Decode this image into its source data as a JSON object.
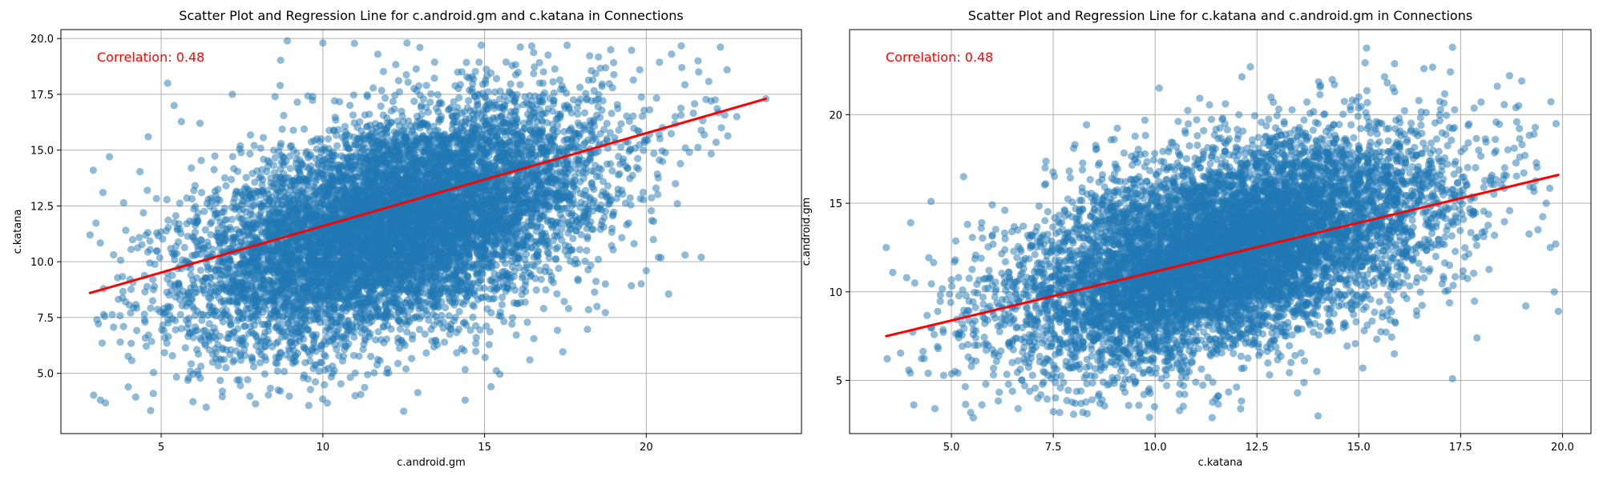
{
  "chart_data": [
    {
      "type": "scatter",
      "title": "Scatter Plot and Regression Line for c.android.gm and c.katana in Connections",
      "xlabel": "c.android.gm",
      "ylabel": "c.katana",
      "xlim": [
        1.9,
        24.8
      ],
      "ylim": [
        2.3,
        20.4
      ],
      "xticks": [
        5,
        10,
        15,
        20
      ],
      "yticks": [
        5.0,
        7.5,
        10.0,
        12.5,
        15.0,
        17.5,
        20.0
      ],
      "xtick_labels": [
        "5",
        "10",
        "15",
        "20"
      ],
      "ytick_labels": [
        "5.0",
        "7.5",
        "10.0",
        "12.5",
        "15.0",
        "17.5",
        "20.0"
      ],
      "grid": true,
      "annotation": "Correlation: 0.48",
      "point_color": "#1f77b4",
      "line_color": "#ff0000",
      "annotation_color": "#ff0000",
      "regression": {
        "x": [
          2.8,
          23.7
        ],
        "y": [
          8.6,
          17.3
        ]
      },
      "cloud": {
        "x_mean": 12.3,
        "y_mean": 11.7,
        "x_std": 3.1,
        "y_std": 2.6,
        "correlation": 0.48,
        "x_range": [
          2.8,
          23.7
        ],
        "y_range": [
          3.3,
          19.9
        ],
        "n": 9000
      },
      "points": [
        {
          "x": 2.8,
          "y": 11.2
        },
        {
          "x": 2.9,
          "y": 14.1
        },
        {
          "x": 3.4,
          "y": 14.7
        },
        {
          "x": 3.2,
          "y": 13.1
        },
        {
          "x": 3.9,
          "y": 8.2
        },
        {
          "x": 4.5,
          "y": 7.3
        },
        {
          "x": 4.6,
          "y": 15.6
        },
        {
          "x": 5.2,
          "y": 18.0
        },
        {
          "x": 5.4,
          "y": 17.0
        },
        {
          "x": 6.0,
          "y": 6.6
        },
        {
          "x": 6.2,
          "y": 16.2
        },
        {
          "x": 7.2,
          "y": 17.5
        },
        {
          "x": 7.6,
          "y": 5.8
        },
        {
          "x": 8.6,
          "y": 5.1
        },
        {
          "x": 8.9,
          "y": 19.9
        },
        {
          "x": 10.0,
          "y": 19.8
        },
        {
          "x": 10.3,
          "y": 5.0
        },
        {
          "x": 11.0,
          "y": 4.0
        },
        {
          "x": 11.7,
          "y": 19.3
        },
        {
          "x": 12.5,
          "y": 3.3
        },
        {
          "x": 12.6,
          "y": 19.8
        },
        {
          "x": 13.0,
          "y": 19.6
        },
        {
          "x": 14.4,
          "y": 3.8
        },
        {
          "x": 14.9,
          "y": 19.7
        },
        {
          "x": 15.2,
          "y": 4.4
        },
        {
          "x": 16.4,
          "y": 5.6
        },
        {
          "x": 17.6,
          "y": 7.9
        },
        {
          "x": 18.9,
          "y": 19.5
        },
        {
          "x": 19.8,
          "y": 18.6
        },
        {
          "x": 20.0,
          "y": 9.6
        },
        {
          "x": 20.1,
          "y": 15.7
        },
        {
          "x": 20.3,
          "y": 13.3
        },
        {
          "x": 20.5,
          "y": 16.0
        },
        {
          "x": 21.1,
          "y": 18.7
        },
        {
          "x": 21.2,
          "y": 10.3
        },
        {
          "x": 21.6,
          "y": 19.0
        },
        {
          "x": 21.7,
          "y": 10.2
        },
        {
          "x": 22.0,
          "y": 17.2
        },
        {
          "x": 22.5,
          "y": 18.6
        },
        {
          "x": 22.8,
          "y": 16.5
        },
        {
          "x": 23.7,
          "y": 17.3
        }
      ]
    },
    {
      "type": "scatter",
      "title": "Scatter Plot and Regression Line for c.katana and c.android.gm in Connections",
      "xlabel": "c.katana",
      "ylabel": "c.android.gm",
      "xlim": [
        2.5,
        20.7
      ],
      "ylim": [
        2.0,
        24.8
      ],
      "xticks": [
        5.0,
        7.5,
        10.0,
        12.5,
        15.0,
        17.5,
        20.0
      ],
      "yticks": [
        5,
        10,
        15,
        20
      ],
      "xtick_labels": [
        "5.0",
        "7.5",
        "10.0",
        "12.5",
        "15.0",
        "17.5",
        "20.0"
      ],
      "ytick_labels": [
        "5",
        "10",
        "15",
        "20"
      ],
      "grid": true,
      "annotation": "Correlation: 0.48",
      "point_color": "#1f77b4",
      "line_color": "#ff0000",
      "annotation_color": "#ff0000",
      "regression": {
        "x": [
          3.4,
          19.9
        ],
        "y": [
          7.5,
          16.6
        ]
      },
      "cloud": {
        "x_mean": 11.7,
        "y_mean": 12.3,
        "x_std": 2.6,
        "y_std": 3.1,
        "correlation": 0.48,
        "x_range": [
          3.4,
          19.9
        ],
        "y_range": [
          2.9,
          23.8
        ],
        "n": 9000
      },
      "points": [
        {
          "x": 3.4,
          "y": 12.5
        },
        {
          "x": 4.0,
          "y": 13.9
        },
        {
          "x": 3.9,
          "y": 10.8
        },
        {
          "x": 4.1,
          "y": 10.5
        },
        {
          "x": 4.5,
          "y": 15.1
        },
        {
          "x": 5.3,
          "y": 16.5
        },
        {
          "x": 5.6,
          "y": 7.8
        },
        {
          "x": 6.8,
          "y": 4.7
        },
        {
          "x": 7.3,
          "y": 17.0
        },
        {
          "x": 8.0,
          "y": 18.1
        },
        {
          "x": 8.7,
          "y": 3.9
        },
        {
          "x": 9.6,
          "y": 3.6
        },
        {
          "x": 10.1,
          "y": 21.5
        },
        {
          "x": 10.6,
          "y": 3.3
        },
        {
          "x": 11.4,
          "y": 2.9
        },
        {
          "x": 12.1,
          "y": 3.4
        },
        {
          "x": 12.9,
          "y": 20.7
        },
        {
          "x": 14.0,
          "y": 3.0
        },
        {
          "x": 15.0,
          "y": 21.0
        },
        {
          "x": 15.1,
          "y": 5.7
        },
        {
          "x": 15.7,
          "y": 21.8
        },
        {
          "x": 16.6,
          "y": 22.6
        },
        {
          "x": 17.3,
          "y": 23.8
        },
        {
          "x": 17.3,
          "y": 5.1
        },
        {
          "x": 17.9,
          "y": 7.4
        },
        {
          "x": 18.4,
          "y": 21.6
        },
        {
          "x": 18.7,
          "y": 22.2
        },
        {
          "x": 19.0,
          "y": 21.9
        },
        {
          "x": 19.3,
          "y": 18.9
        },
        {
          "x": 19.4,
          "y": 13.5
        },
        {
          "x": 19.6,
          "y": 15.0
        },
        {
          "x": 19.7,
          "y": 12.5
        },
        {
          "x": 19.8,
          "y": 10.0
        },
        {
          "x": 19.9,
          "y": 8.9
        },
        {
          "x": 19.1,
          "y": 9.2
        }
      ]
    }
  ]
}
